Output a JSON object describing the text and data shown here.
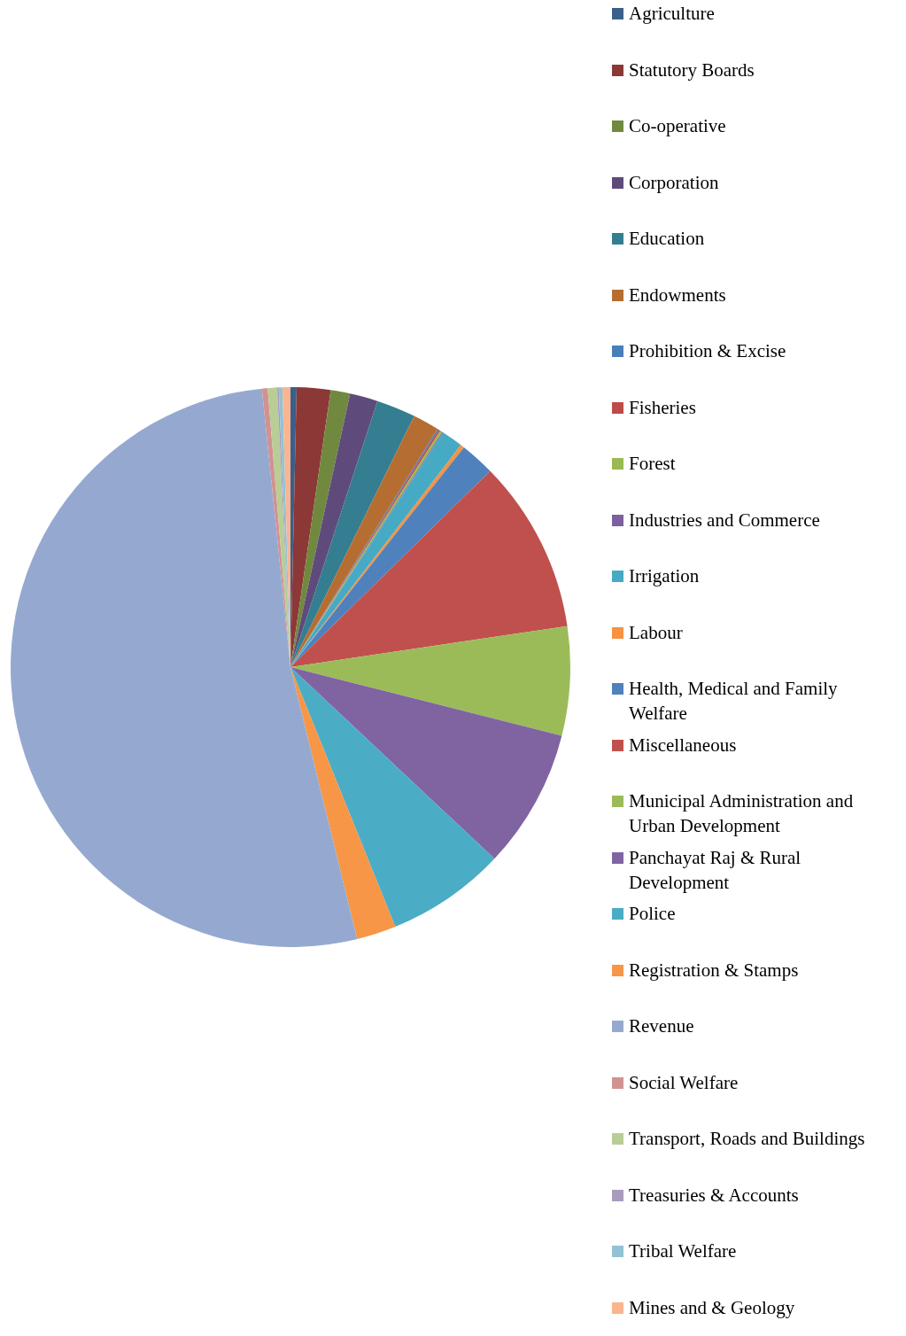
{
  "chart_data": {
    "type": "pie",
    "categories": [
      "Agriculture",
      "Statutory Boards",
      "Co-operative",
      "Corporation",
      "Education",
      "Endowments",
      "Prohibition & Excise",
      "Fisheries",
      "Forest",
      "Industries and Commerce",
      "Irrigation",
      "Labour",
      "Health, Medical and Family Welfare",
      "Miscellaneous",
      "Municipal Administration and Urban Development",
      "Panchayat Raj & Rural Development",
      "Police",
      "Registration & Stamps",
      "Revenue",
      "Social Welfare",
      "Transport, Roads and Buildings",
      "Treasuries & Accounts",
      "Tribal Welfare",
      "Mines and & Geology"
    ],
    "values": [
      0.35,
      1.95,
      1.12,
      1.61,
      2.26,
      1.51,
      0.08,
      0.11,
      0.14,
      0.06,
      1.23,
      0.22,
      2.01,
      10.01,
      6.28,
      8.06,
      6.89,
      2.28,
      52.2,
      0.33,
      0.54,
      0.09,
      0.21,
      0.46
    ],
    "colors": [
      "#3a5f8b",
      "#8c3836",
      "#71893f",
      "#5f4b7b",
      "#357d91",
      "#b66d31",
      "#4a7ebb",
      "#be4b48",
      "#98b954",
      "#7d60a0",
      "#46aac5",
      "#f69240",
      "#4f81bd",
      "#c0504d",
      "#9bbb59",
      "#8064a2",
      "#4bacc6",
      "#f79646",
      "#95a9d0",
      "#d19392",
      "#b9cd96",
      "#a99bbd",
      "#91c3d5",
      "#f9b590"
    ],
    "legend": "right"
  }
}
